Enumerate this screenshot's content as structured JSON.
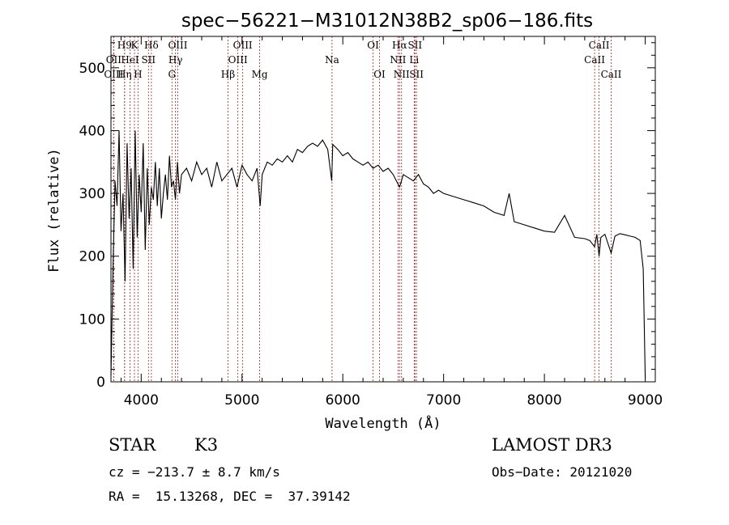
{
  "chart_data": {
    "type": "line",
    "title": "spec−56221−M31012N38B2_sp06−186.fits",
    "xlabel": "Wavelength (Å)",
    "ylabel": "Flux (relative)",
    "xlim": [
      3700,
      9100
    ],
    "ylim": [
      0,
      550
    ],
    "xticks": [
      4000,
      5000,
      6000,
      7000,
      8000,
      9000
    ],
    "yticks": [
      0,
      100,
      200,
      300,
      400,
      500
    ],
    "grid": false,
    "series": [
      {
        "name": "spectrum",
        "x": [
          3700,
          3720,
          3740,
          3760,
          3780,
          3800,
          3820,
          3840,
          3860,
          3880,
          3900,
          3920,
          3940,
          3960,
          3980,
          4000,
          4020,
          4040,
          4060,
          4080,
          4100,
          4120,
          4140,
          4160,
          4180,
          4200,
          4220,
          4240,
          4260,
          4280,
          4300,
          4320,
          4340,
          4360,
          4380,
          4400,
          4450,
          4500,
          4550,
          4600,
          4650,
          4700,
          4750,
          4800,
          4850,
          4900,
          4950,
          5000,
          5050,
          5100,
          5150,
          5180,
          5200,
          5250,
          5300,
          5350,
          5400,
          5450,
          5500,
          5550,
          5600,
          5650,
          5700,
          5750,
          5800,
          5850,
          5890,
          5900,
          5950,
          6000,
          6050,
          6100,
          6150,
          6200,
          6250,
          6300,
          6350,
          6400,
          6450,
          6500,
          6563,
          6600,
          6650,
          6700,
          6750,
          6800,
          6850,
          6900,
          6950,
          7000,
          7100,
          7200,
          7300,
          7400,
          7500,
          7600,
          7650,
          7700,
          7800,
          7900,
          8000,
          8100,
          8200,
          8300,
          8400,
          8450,
          8498,
          8520,
          8542,
          8560,
          8600,
          8662,
          8700,
          8750,
          8800,
          8850,
          8900,
          8950,
          8980,
          9000
        ],
        "values": [
          10,
          180,
          320,
          280,
          400,
          240,
          300,
          160,
          380,
          260,
          340,
          180,
          400,
          230,
          330,
          270,
          380,
          210,
          340,
          250,
          310,
          290,
          350,
          280,
          340,
          260,
          300,
          330,
          290,
          360,
          310,
          320,
          290,
          350,
          300,
          330,
          340,
          320,
          350,
          330,
          340,
          310,
          350,
          320,
          330,
          340,
          310,
          345,
          330,
          320,
          340,
          280,
          330,
          350,
          345,
          355,
          350,
          360,
          350,
          370,
          365,
          375,
          380,
          375,
          385,
          370,
          320,
          378,
          370,
          360,
          365,
          355,
          350,
          345,
          350,
          340,
          345,
          335,
          340,
          330,
          310,
          330,
          325,
          320,
          330,
          315,
          310,
          300,
          305,
          300,
          295,
          290,
          285,
          280,
          270,
          265,
          300,
          255,
          250,
          245,
          240,
          238,
          265,
          230,
          228,
          225,
          215,
          235,
          200,
          230,
          235,
          205,
          232,
          236,
          234,
          232,
          230,
          225,
          180,
          5
        ]
      }
    ],
    "spectral_lines": [
      {
        "label": "H9",
        "wavelength": 3835,
        "row": 0
      },
      {
        "label": "K",
        "wavelength": 3933,
        "row": 0
      },
      {
        "label": "Hδ",
        "wavelength": 4101,
        "row": 0
      },
      {
        "label": "OIII",
        "wavelength": 4363,
        "row": 0
      },
      {
        "label": "OIII",
        "wavelength": 5007,
        "row": 0
      },
      {
        "label": "OI",
        "wavelength": 6300,
        "row": 0
      },
      {
        "label": "Hα",
        "wavelength": 6563,
        "row": 0
      },
      {
        "label": "SII",
        "wavelength": 6716,
        "row": 0
      },
      {
        "label": "CaII",
        "wavelength": 8542,
        "row": 0
      },
      {
        "label": "OII",
        "wavelength": 3727,
        "row": 1
      },
      {
        "label": "HeI",
        "wavelength": 3889,
        "row": 1
      },
      {
        "label": "SII",
        "wavelength": 4072,
        "row": 1
      },
      {
        "label": "Hγ",
        "wavelength": 4340,
        "row": 1
      },
      {
        "label": "OIII",
        "wavelength": 4959,
        "row": 1
      },
      {
        "label": "Na",
        "wavelength": 5893,
        "row": 1
      },
      {
        "label": "NII",
        "wavelength": 6548,
        "row": 1
      },
      {
        "label": "Li",
        "wavelength": 6708,
        "row": 1
      },
      {
        "label": "CaII",
        "wavelength": 8498,
        "row": 1
      },
      {
        "label": "OIII",
        "wavelength": 3727,
        "row": 2
      },
      {
        "label": "Hη",
        "wavelength": 3835,
        "row": 2
      },
      {
        "label": "H",
        "wavelength": 3968,
        "row": 2
      },
      {
        "label": "G",
        "wavelength": 4305,
        "row": 2
      },
      {
        "label": "Hβ",
        "wavelength": 4861,
        "row": 2
      },
      {
        "label": "Mg",
        "wavelength": 5175,
        "row": 2
      },
      {
        "label": "OI",
        "wavelength": 6364,
        "row": 2
      },
      {
        "label": "NII",
        "wavelength": 6583,
        "row": 2
      },
      {
        "label": "SII",
        "wavelength": 6731,
        "row": 2
      },
      {
        "label": "CaII",
        "wavelength": 8662,
        "row": 2
      }
    ]
  },
  "info": {
    "class_label": "STAR",
    "subclass": "K3",
    "survey": "LAMOST DR3",
    "redshift": "cz = −213.7 ± 8.7 km/s",
    "obs_date": "Obs−Date: 20121020",
    "coords": "RA =  15.13268, DEC =  37.39142"
  }
}
